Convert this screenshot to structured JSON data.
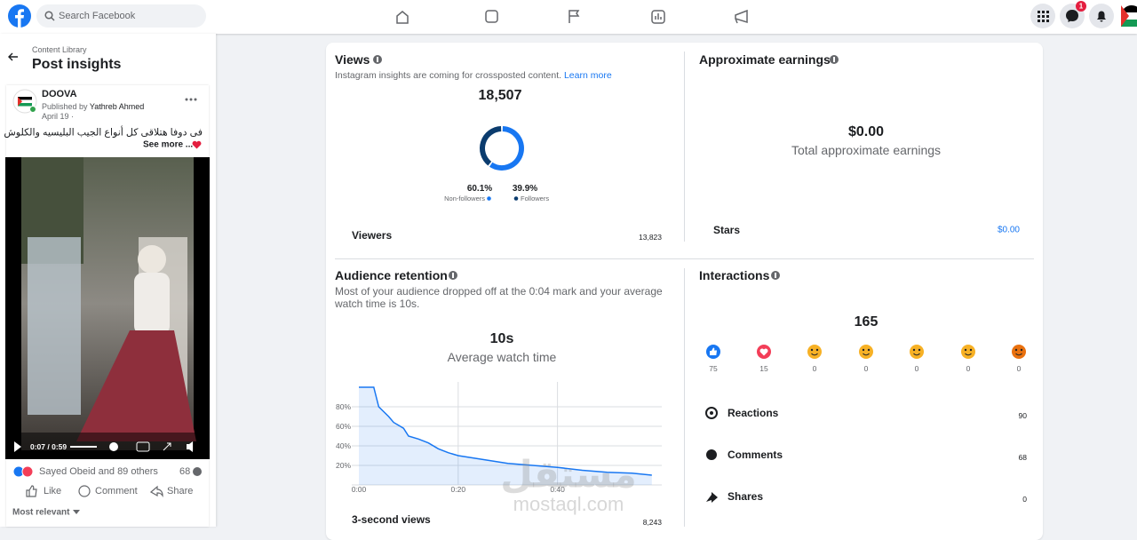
{
  "nav": {
    "search_placeholder": "Search Facebook",
    "notification_badge": "1"
  },
  "sidebar": {
    "breadcrumb": "Content Library",
    "title": "Post insights",
    "post": {
      "page_name": "DOOVA",
      "published_by": "Published by",
      "author": "Yathreb Ahmed",
      "date": "April 19 ·",
      "caption": "فى دوفا هتلاقى كل أنواع الجيب البليسيه والكلوش",
      "see_more": "See more ...",
      "video_time": "0:07 / 0:59",
      "reactions_summary": "Sayed Obeid and 89 others",
      "comment_count": "68",
      "actions": [
        "Like",
        "Comment",
        "Share"
      ],
      "sort": "Most relevant"
    }
  },
  "views": {
    "title": "Views",
    "note": "Instagram insights are coming for crossposted content.",
    "link": "Learn more",
    "total": "18,507",
    "viewers_label": "Viewers",
    "viewers_value": "13,823"
  },
  "earnings": {
    "title": "Approximate earnings",
    "total": "$0.00",
    "total_label": "Total approximate earnings",
    "stars_label": "Stars",
    "stars_value": "$0.00"
  },
  "retention": {
    "title": "Audience retention",
    "description": "Most of your audience dropped off at the 0:04 mark and your average watch time is 10s.",
    "average": "10s",
    "average_label": "Average watch time",
    "three_second_label": "3-second views",
    "three_second_value": "8,243"
  },
  "interactions": {
    "title": "Interactions",
    "total": "165",
    "reaction_counts": [
      75,
      15,
      0,
      0,
      0,
      0,
      0
    ],
    "rows": [
      {
        "label": "Reactions",
        "value": "90"
      },
      {
        "label": "Comments",
        "value": "68"
      },
      {
        "label": "Shares",
        "value": "0"
      }
    ]
  },
  "watermark": {
    "arabic": "مستقل",
    "latin": "mostaql.com"
  },
  "chart_data": [
    {
      "type": "pie",
      "categories": [
        "Non-followers",
        "Followers"
      ],
      "values": [
        60.1,
        39.9
      ],
      "value_labels": [
        "60.1%",
        "39.9%"
      ],
      "colors": [
        "#1877f2",
        "#0b3c6e"
      ]
    },
    {
      "type": "line",
      "x": [
        0,
        1,
        2,
        3,
        4,
        5,
        6,
        7,
        8,
        9,
        10,
        12,
        14,
        16,
        18,
        20,
        25,
        30,
        35,
        40,
        45,
        50,
        55,
        59
      ],
      "values": [
        100,
        100,
        100,
        100,
        80,
        75,
        70,
        64,
        61,
        58,
        50,
        47,
        43,
        37,
        33,
        30,
        26,
        22,
        20,
        18,
        15,
        13,
        12,
        10
      ],
      "color": "#1877f2",
      "xlim": [
        0,
        61
      ],
      "ylim": [
        0,
        100
      ],
      "xticks": [
        {
          "value": 0,
          "label": "0:00"
        },
        {
          "value": 20,
          "label": "0:20"
        },
        {
          "value": 40,
          "label": "0:40"
        }
      ],
      "yticks": [
        {
          "value": 20,
          "label": "20%"
        },
        {
          "value": 40,
          "label": "40%"
        },
        {
          "value": 60,
          "label": "60%"
        },
        {
          "value": 80,
          "label": "80%"
        }
      ],
      "grid": true
    }
  ]
}
